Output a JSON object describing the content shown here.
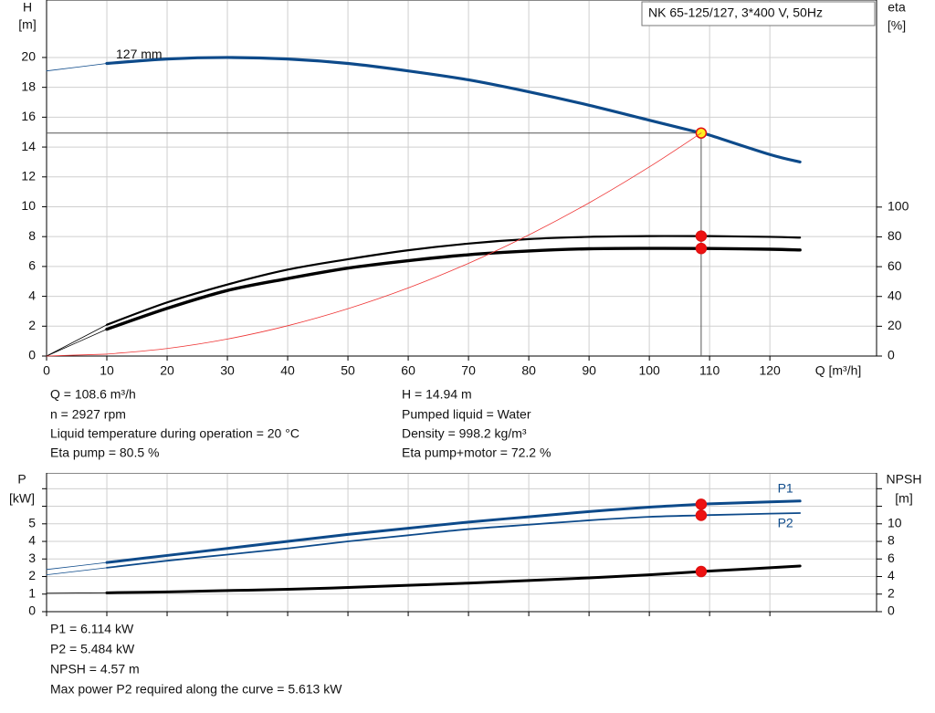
{
  "chart_data": [
    {
      "type": "line",
      "title": "NK 65-125/127, 3*400 V, 50Hz",
      "y_label": "H",
      "y_unit": "[m]",
      "y2_label": "eta",
      "y2_unit": "[%]",
      "x_label": "Q [m³/h]",
      "x": [
        0,
        10,
        20,
        30,
        40,
        50,
        60,
        70,
        80,
        90,
        100,
        108.6,
        110,
        120,
        125
      ],
      "xlim": [
        0,
        137.7
      ],
      "ylim": [
        0,
        23.85
      ],
      "y2lim": [
        0,
        239
      ],
      "xticks": [
        0,
        10,
        20,
        30,
        40,
        50,
        60,
        70,
        80,
        90,
        100,
        110,
        120
      ],
      "yticks": [
        0,
        2,
        4,
        6,
        8,
        10,
        12,
        14,
        16,
        18,
        20
      ],
      "y2ticks": [
        0,
        20,
        40,
        60,
        80,
        100
      ],
      "grid": true,
      "xtick_labels": true,
      "series": [
        {
          "name": "127 mm",
          "color": "#0d4a8a",
          "width": 3.2,
          "marker_color": "#ffee22",
          "values": [
            19.1,
            19.6,
            19.9,
            20.0,
            19.9,
            19.6,
            19.1,
            18.5,
            17.7,
            16.8,
            15.8,
            14.94,
            14.8,
            13.5,
            13.0
          ]
        },
        {
          "color": "#000000",
          "width": 2.2,
          "marker_color": "#ee1111",
          "axis": "y2",
          "values": [
            0,
            21,
            36,
            48,
            58,
            65,
            71,
            75.5,
            78.5,
            80,
            80.5,
            80.5,
            80.5,
            80,
            79.5
          ]
        },
        {
          "color": "#000000",
          "width": 3.4,
          "marker_color": "#ee1111",
          "axis": "y2",
          "values": [
            0,
            18,
            32,
            44,
            52,
            59,
            64,
            68,
            70.5,
            72,
            72.3,
            72.2,
            72.2,
            71.7,
            71.2
          ]
        },
        {
          "color": "#ee3333",
          "width": 0.8,
          "values": [
            0,
            0.127,
            0.507,
            1.14,
            2.03,
            3.17,
            4.56,
            6.21,
            8.11,
            10.26,
            12.67,
            14.94,
            null,
            null,
            null
          ]
        }
      ],
      "operating_index": 11,
      "annotations": [
        "Q = 108.6 m³/h",
        "n = 2927 rpm",
        "Liquid temperature during operation = 20 °C",
        "Eta pump = 80.5 %",
        "H = 14.94 m",
        "Pumped liquid = Water",
        "Density = 998.2 kg/m³",
        "Eta pump+motor = 72.2 %"
      ]
    },
    {
      "type": "line",
      "y_label": "P",
      "y_unit": "[kW]",
      "y2_label": "NPSH",
      "y2_unit": "[m]",
      "x": [
        0,
        10,
        20,
        30,
        40,
        50,
        60,
        70,
        80,
        90,
        100,
        108.6,
        110,
        120,
        125
      ],
      "xlim": [
        0,
        137.7
      ],
      "ylim": [
        0,
        7.9
      ],
      "y2lim": [
        0,
        15.8
      ],
      "xticks": [
        0,
        10,
        20,
        30,
        40,
        50,
        60,
        70,
        80,
        90,
        100,
        110,
        120
      ],
      "yticks": [
        0,
        1,
        2,
        3,
        4,
        5
      ],
      "minor_yticks": [
        6,
        7
      ],
      "y2ticks": [
        0,
        2,
        4,
        6,
        8,
        10
      ],
      "minor_y2ticks": [
        12,
        14
      ],
      "grid": true,
      "xtick_labels": false,
      "series": [
        {
          "name": "P1",
          "color": "#0d4a8a",
          "width": 3,
          "marker_color": "#ee1111",
          "values": [
            2.4,
            2.8,
            3.2,
            3.6,
            4.0,
            4.4,
            4.75,
            5.1,
            5.4,
            5.7,
            5.95,
            6.114,
            6.14,
            6.25,
            6.3
          ]
        },
        {
          "name": "P2",
          "color": "#0d4a8a",
          "width": 1.8,
          "marker_color": "#ee1111",
          "values": [
            2.1,
            2.5,
            2.9,
            3.25,
            3.6,
            4.0,
            4.35,
            4.7,
            4.95,
            5.2,
            5.4,
            5.484,
            5.5,
            5.58,
            5.613
          ]
        },
        {
          "color": "#000000",
          "width": 3,
          "marker_color": "#ee1111",
          "axis": "y2",
          "values": [
            2.1,
            2.15,
            2.25,
            2.4,
            2.55,
            2.75,
            3.0,
            3.25,
            3.55,
            3.85,
            4.2,
            4.57,
            4.63,
            5.0,
            5.2
          ]
        }
      ],
      "operating_index": 11,
      "annotations": [
        "P1 = 6.114 kW",
        "P2 = 5.484 kW",
        "NPSH = 4.57 m",
        "Max power P2 required along the curve = 5.613 kW"
      ]
    }
  ]
}
